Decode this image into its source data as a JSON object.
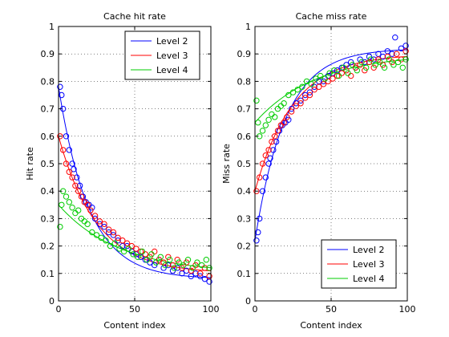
{
  "chart_data": [
    {
      "type": "scatter",
      "title": "Cache hit rate",
      "xlabel": "Content index",
      "ylabel": "Hit rate",
      "xlim": [
        0,
        100
      ],
      "ylim": [
        0,
        1
      ],
      "xticks": [
        0,
        50,
        100
      ],
      "yticks": [
        0,
        0.1,
        0.2,
        0.3,
        0.4,
        0.5,
        0.6,
        0.7,
        0.8,
        0.9,
        1
      ],
      "grid": true,
      "legend_position": "top-right",
      "series": [
        {
          "name": "Level 2",
          "color": "#0000ff",
          "fit": {
            "a": 0.7,
            "k": 0.05,
            "c": 0.08
          },
          "points": [
            [
              1,
              0.78
            ],
            [
              2,
              0.75
            ],
            [
              3,
              0.7
            ],
            [
              5,
              0.6
            ],
            [
              7,
              0.55
            ],
            [
              9,
              0.5
            ],
            [
              10,
              0.48
            ],
            [
              12,
              0.45
            ],
            [
              14,
              0.42
            ],
            [
              16,
              0.38
            ],
            [
              18,
              0.36
            ],
            [
              20,
              0.35
            ],
            [
              22,
              0.34
            ],
            [
              24,
              0.3
            ],
            [
              27,
              0.28
            ],
            [
              30,
              0.27
            ],
            [
              33,
              0.25
            ],
            [
              36,
              0.24
            ],
            [
              39,
              0.22
            ],
            [
              42,
              0.2
            ],
            [
              45,
              0.2
            ],
            [
              48,
              0.18
            ],
            [
              51,
              0.17
            ],
            [
              54,
              0.16
            ],
            [
              57,
              0.15
            ],
            [
              60,
              0.14
            ],
            [
              63,
              0.13
            ],
            [
              66,
              0.15
            ],
            [
              69,
              0.12
            ],
            [
              72,
              0.13
            ],
            [
              75,
              0.11
            ],
            [
              78,
              0.12
            ],
            [
              81,
              0.1
            ],
            [
              84,
              0.11
            ],
            [
              87,
              0.09
            ],
            [
              90,
              0.1
            ],
            [
              93,
              0.09
            ],
            [
              96,
              0.08
            ],
            [
              99,
              0.07
            ]
          ]
        },
        {
          "name": "Level 3",
          "color": "#ff0000",
          "fit": {
            "a": 0.5,
            "k": 0.04,
            "c": 0.1
          },
          "points": [
            [
              1,
              0.6
            ],
            [
              3,
              0.55
            ],
            [
              5,
              0.5
            ],
            [
              7,
              0.47
            ],
            [
              9,
              0.45
            ],
            [
              11,
              0.42
            ],
            [
              13,
              0.4
            ],
            [
              15,
              0.38
            ],
            [
              17,
              0.36
            ],
            [
              19,
              0.35
            ],
            [
              21,
              0.33
            ],
            [
              24,
              0.31
            ],
            [
              27,
              0.29
            ],
            [
              30,
              0.28
            ],
            [
              33,
              0.26
            ],
            [
              36,
              0.25
            ],
            [
              39,
              0.23
            ],
            [
              42,
              0.22
            ],
            [
              45,
              0.21
            ],
            [
              48,
              0.2
            ],
            [
              51,
              0.19
            ],
            [
              54,
              0.18
            ],
            [
              57,
              0.17
            ],
            [
              60,
              0.16
            ],
            [
              63,
              0.18
            ],
            [
              66,
              0.15
            ],
            [
              69,
              0.14
            ],
            [
              72,
              0.16
            ],
            [
              75,
              0.13
            ],
            [
              78,
              0.15
            ],
            [
              81,
              0.12
            ],
            [
              84,
              0.14
            ],
            [
              87,
              0.11
            ],
            [
              90,
              0.13
            ],
            [
              93,
              0.1
            ],
            [
              96,
              0.12
            ],
            [
              99,
              0.09
            ]
          ]
        },
        {
          "name": "Level 4",
          "color": "#00cc00",
          "fit": {
            "a": 0.25,
            "k": 0.025,
            "c": 0.1
          },
          "points": [
            [
              1,
              0.27
            ],
            [
              2,
              0.35
            ],
            [
              3,
              0.4
            ],
            [
              5,
              0.38
            ],
            [
              7,
              0.36
            ],
            [
              9,
              0.34
            ],
            [
              11,
              0.32
            ],
            [
              13,
              0.33
            ],
            [
              15,
              0.3
            ],
            [
              17,
              0.29
            ],
            [
              19,
              0.28
            ],
            [
              22,
              0.25
            ],
            [
              25,
              0.24
            ],
            [
              28,
              0.23
            ],
            [
              31,
              0.22
            ],
            [
              34,
              0.2
            ],
            [
              37,
              0.21
            ],
            [
              40,
              0.19
            ],
            [
              43,
              0.18
            ],
            [
              46,
              0.19
            ],
            [
              49,
              0.17
            ],
            [
              52,
              0.16
            ],
            [
              55,
              0.18
            ],
            [
              58,
              0.15
            ],
            [
              61,
              0.17
            ],
            [
              64,
              0.14
            ],
            [
              67,
              0.16
            ],
            [
              70,
              0.13
            ],
            [
              73,
              0.15
            ],
            [
              76,
              0.12
            ],
            [
              79,
              0.14
            ],
            [
              82,
              0.13
            ],
            [
              85,
              0.15
            ],
            [
              88,
              0.12
            ],
            [
              91,
              0.14
            ],
            [
              94,
              0.13
            ],
            [
              97,
              0.15
            ],
            [
              99,
              0.12
            ]
          ]
        }
      ]
    },
    {
      "type": "scatter",
      "title": "Cache miss rate",
      "xlabel": "Content index",
      "ylabel": "Miss rate",
      "xlim": [
        0,
        100
      ],
      "ylim": [
        0,
        1
      ],
      "xticks": [
        0,
        50,
        100
      ],
      "yticks": [
        0,
        0.1,
        0.2,
        0.3,
        0.4,
        0.5,
        0.6,
        0.7,
        0.8,
        0.9,
        1
      ],
      "grid": true,
      "legend_position": "bottom-right",
      "series": [
        {
          "name": "Level 2",
          "color": "#0000ff",
          "fit": {
            "a": 0.7,
            "k": 0.05,
            "c": 0.08
          },
          "points": [
            [
              1,
              0.22
            ],
            [
              2,
              0.25
            ],
            [
              3,
              0.3
            ],
            [
              5,
              0.4
            ],
            [
              7,
              0.45
            ],
            [
              9,
              0.5
            ],
            [
              10,
              0.52
            ],
            [
              12,
              0.55
            ],
            [
              14,
              0.58
            ],
            [
              16,
              0.62
            ],
            [
              18,
              0.64
            ],
            [
              20,
              0.65
            ],
            [
              22,
              0.66
            ],
            [
              24,
              0.7
            ],
            [
              27,
              0.72
            ],
            [
              30,
              0.73
            ],
            [
              33,
              0.75
            ],
            [
              36,
              0.76
            ],
            [
              39,
              0.78
            ],
            [
              42,
              0.8
            ],
            [
              45,
              0.8
            ],
            [
              48,
              0.82
            ],
            [
              51,
              0.83
            ],
            [
              54,
              0.84
            ],
            [
              57,
              0.85
            ],
            [
              60,
              0.86
            ],
            [
              63,
              0.87
            ],
            [
              66,
              0.85
            ],
            [
              69,
              0.88
            ],
            [
              72,
              0.87
            ],
            [
              75,
              0.89
            ],
            [
              78,
              0.88
            ],
            [
              81,
              0.9
            ],
            [
              84,
              0.89
            ],
            [
              87,
              0.91
            ],
            [
              90,
              0.9
            ],
            [
              92,
              0.96
            ],
            [
              96,
              0.92
            ],
            [
              99,
              0.93
            ]
          ]
        },
        {
          "name": "Level 3",
          "color": "#ff0000",
          "fit": {
            "a": 0.5,
            "k": 0.04,
            "c": 0.1
          },
          "points": [
            [
              1,
              0.4
            ],
            [
              3,
              0.45
            ],
            [
              5,
              0.5
            ],
            [
              7,
              0.53
            ],
            [
              9,
              0.55
            ],
            [
              11,
              0.58
            ],
            [
              13,
              0.6
            ],
            [
              15,
              0.62
            ],
            [
              17,
              0.64
            ],
            [
              19,
              0.65
            ],
            [
              21,
              0.67
            ],
            [
              24,
              0.69
            ],
            [
              27,
              0.71
            ],
            [
              30,
              0.72
            ],
            [
              33,
              0.74
            ],
            [
              36,
              0.75
            ],
            [
              39,
              0.77
            ],
            [
              42,
              0.78
            ],
            [
              45,
              0.79
            ],
            [
              48,
              0.8
            ],
            [
              51,
              0.81
            ],
            [
              54,
              0.82
            ],
            [
              57,
              0.83
            ],
            [
              60,
              0.84
            ],
            [
              63,
              0.82
            ],
            [
              66,
              0.85
            ],
            [
              69,
              0.86
            ],
            [
              72,
              0.84
            ],
            [
              75,
              0.87
            ],
            [
              78,
              0.85
            ],
            [
              81,
              0.88
            ],
            [
              84,
              0.86
            ],
            [
              87,
              0.89
            ],
            [
              90,
              0.87
            ],
            [
              93,
              0.9
            ],
            [
              96,
              0.88
            ],
            [
              99,
              0.91
            ]
          ]
        },
        {
          "name": "Level 4",
          "color": "#00cc00",
          "fit": {
            "a": 0.25,
            "k": 0.025,
            "c": 0.1
          },
          "points": [
            [
              1,
              0.73
            ],
            [
              2,
              0.65
            ],
            [
              3,
              0.6
            ],
            [
              5,
              0.62
            ],
            [
              7,
              0.64
            ],
            [
              9,
              0.66
            ],
            [
              11,
              0.68
            ],
            [
              13,
              0.67
            ],
            [
              15,
              0.7
            ],
            [
              17,
              0.71
            ],
            [
              19,
              0.72
            ],
            [
              22,
              0.75
            ],
            [
              25,
              0.76
            ],
            [
              28,
              0.77
            ],
            [
              31,
              0.78
            ],
            [
              34,
              0.8
            ],
            [
              37,
              0.79
            ],
            [
              40,
              0.81
            ],
            [
              43,
              0.82
            ],
            [
              46,
              0.81
            ],
            [
              49,
              0.83
            ],
            [
              52,
              0.84
            ],
            [
              55,
              0.82
            ],
            [
              58,
              0.85
            ],
            [
              61,
              0.83
            ],
            [
              64,
              0.86
            ],
            [
              67,
              0.84
            ],
            [
              70,
              0.87
            ],
            [
              73,
              0.85
            ],
            [
              76,
              0.88
            ],
            [
              79,
              0.86
            ],
            [
              82,
              0.87
            ],
            [
              85,
              0.85
            ],
            [
              88,
              0.88
            ],
            [
              91,
              0.86
            ],
            [
              94,
              0.87
            ],
            [
              97,
              0.85
            ],
            [
              99,
              0.88
            ]
          ]
        }
      ]
    }
  ]
}
